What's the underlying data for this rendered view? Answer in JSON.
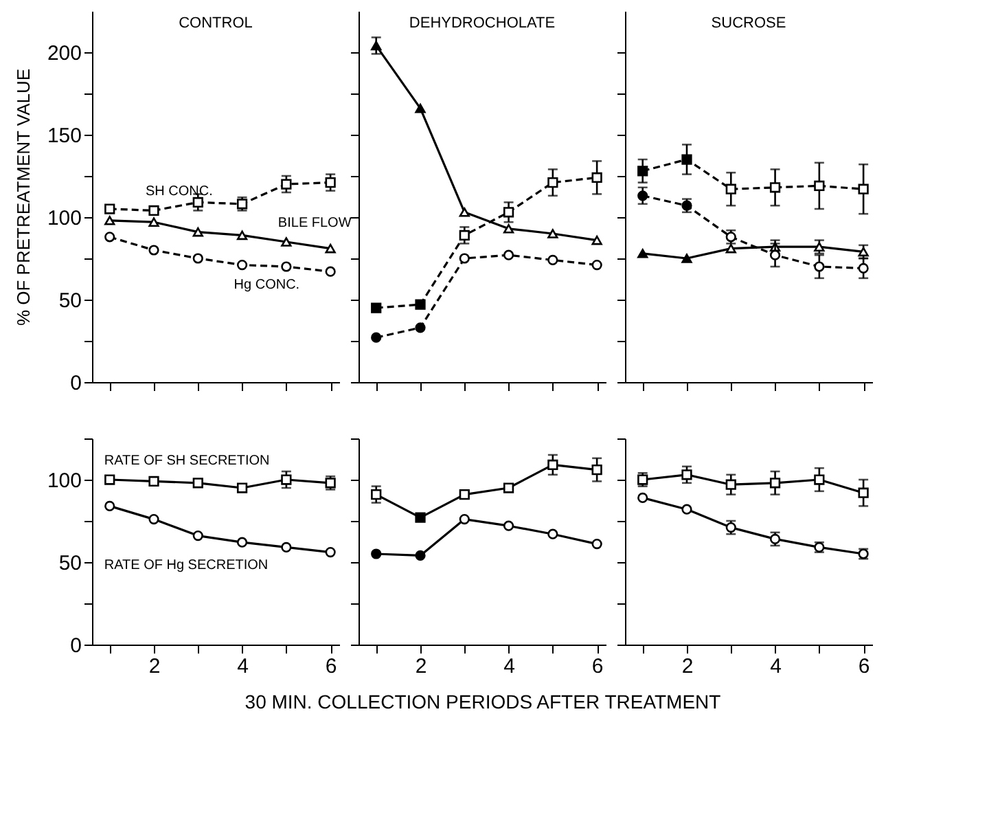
{
  "chart_data": [
    {
      "type": "line",
      "title": "CONTROL",
      "ylabel": "% OF PRETREATMENT VALUE",
      "tick_labels": "y",
      "xlim": [
        0.6,
        6.2
      ],
      "ylim": [
        0,
        225
      ],
      "xticks": [
        {
          "value": 1,
          "label": null
        },
        2,
        {
          "value": 3,
          "label": null
        },
        4,
        {
          "value": 5,
          "label": null
        },
        6
      ],
      "yticks": [
        0,
        {
          "value": 25,
          "label": null
        },
        50,
        {
          "value": 75,
          "label": null
        },
        100,
        {
          "value": 125,
          "label": null
        },
        150,
        {
          "value": 175,
          "label": null
        },
        200
      ],
      "x": [
        1,
        2,
        3,
        4,
        5,
        6
      ],
      "series": [
        {
          "name": "SH CONC.",
          "color": "#000000",
          "marker": "square",
          "line_style": "dashed",
          "values": [
            105,
            104,
            109,
            108,
            120,
            121
          ],
          "errors": [
            null,
            null,
            5,
            4,
            5,
            5
          ],
          "colors": [
            "#ffffff",
            "#ffffff",
            "#ffffff",
            "#ffffff",
            "#ffffff",
            "#ffffff"
          ]
        },
        {
          "name": "BILE FLOW",
          "color": "#000000",
          "marker": "triangle",
          "line_style": "solid",
          "values": [
            98,
            97,
            91,
            89,
            85,
            81
          ],
          "colors": [
            "#ffffff",
            "#ffffff",
            "#ffffff",
            "#ffffff",
            "#ffffff",
            "#ffffff"
          ]
        },
        {
          "name": "Hg CONC.",
          "color": "#000000",
          "marker": "circle",
          "line_style": "dashed",
          "values": [
            88,
            80,
            75,
            71,
            70,
            67
          ],
          "colors": [
            "#ffffff",
            "#ffffff",
            "#ffffff",
            "#ffffff",
            "#ffffff",
            "#ffffff"
          ]
        }
      ]
    },
    {
      "type": "line",
      "title": "DEHYDROCHOLATE",
      "tick_labels": false,
      "xlim": [
        0.6,
        6.2
      ],
      "ylim": [
        0,
        225
      ],
      "xticks": [
        {
          "value": 1,
          "label": null
        },
        2,
        {
          "value": 3,
          "label": null
        },
        4,
        {
          "value": 5,
          "label": null
        },
        6
      ],
      "yticks": [
        0,
        {
          "value": 25,
          "label": null
        },
        50,
        {
          "value": 75,
          "label": null
        },
        100,
        {
          "value": 125,
          "label": null
        },
        150,
        {
          "value": 175,
          "label": null
        },
        200
      ],
      "x": [
        1,
        2,
        3,
        4,
        5,
        6
      ],
      "series": [
        {
          "color": "#000000",
          "marker": "square",
          "line_style": "dashed",
          "values": [
            45,
            47,
            89,
            103,
            121,
            124
          ],
          "errors": [
            null,
            null,
            5,
            6,
            8,
            10
          ],
          "colors": [
            "#000000",
            "#000000",
            "#ffffff",
            "#ffffff",
            "#ffffff",
            "#ffffff"
          ]
        },
        {
          "color": "#000000",
          "marker": "triangle",
          "line_style": "solid",
          "values": [
            204,
            166,
            103,
            93,
            90,
            86
          ],
          "errors": [
            5,
            null,
            null,
            null,
            null,
            null
          ],
          "colors": [
            "#000000",
            "#000000",
            "#ffffff",
            "#ffffff",
            "#ffffff",
            "#ffffff"
          ]
        },
        {
          "color": "#000000",
          "marker": "circle",
          "line_style": "dashed",
          "values": [
            27,
            33,
            75,
            77,
            74,
            71
          ],
          "colors": [
            "#000000",
            "#000000",
            "#ffffff",
            "#ffffff",
            "#ffffff",
            "#ffffff"
          ]
        }
      ]
    },
    {
      "type": "line",
      "title": "SUCROSE",
      "tick_labels": false,
      "xlim": [
        0.6,
        6.2
      ],
      "ylim": [
        0,
        225
      ],
      "xticks": [
        {
          "value": 1,
          "label": null
        },
        2,
        {
          "value": 3,
          "label": null
        },
        4,
        {
          "value": 5,
          "label": null
        },
        6
      ],
      "yticks": [
        0,
        {
          "value": 25,
          "label": null
        },
        50,
        {
          "value": 75,
          "label": null
        },
        100,
        {
          "value": 125,
          "label": null
        },
        150,
        {
          "value": 175,
          "label": null
        },
        200
      ],
      "x": [
        1,
        2,
        3,
        4,
        5,
        6
      ],
      "series": [
        {
          "color": "#000000",
          "marker": "square",
          "line_style": "dashed",
          "values": [
            128,
            135,
            117,
            118,
            119,
            117
          ],
          "errors": [
            7,
            9,
            10,
            11,
            14,
            15
          ],
          "colors": [
            "#000000",
            "#000000",
            "#ffffff",
            "#ffffff",
            "#ffffff",
            "#ffffff"
          ]
        },
        {
          "color": "#000000",
          "marker": "triangle",
          "line_style": "solid",
          "values": [
            78,
            75,
            81,
            82,
            82,
            79
          ],
          "errors": [
            null,
            null,
            null,
            4,
            4,
            4
          ],
          "colors": [
            "#000000",
            "#000000",
            "#ffffff",
            "#ffffff",
            "#ffffff",
            "#ffffff"
          ]
        },
        {
          "color": "#000000",
          "marker": "circle",
          "line_style": "dashed",
          "values": [
            113,
            107,
            88,
            77,
            70,
            69
          ],
          "errors": [
            5,
            4,
            4,
            7,
            7,
            6
          ],
          "colors": [
            "#000000",
            "#000000",
            "#ffffff",
            "#ffffff",
            "#ffffff",
            "#ffffff"
          ]
        }
      ]
    },
    {
      "type": "line",
      "xlim": [
        0.6,
        6.2
      ],
      "ylim": [
        0,
        125
      ],
      "xticks": [
        {
          "value": 1,
          "label": null
        },
        2,
        {
          "value": 3,
          "label": null
        },
        4,
        {
          "value": 5,
          "label": null
        },
        6
      ],
      "yticks": [
        0,
        {
          "value": 25,
          "label": null
        },
        50,
        {
          "value": 75,
          "label": null
        },
        100,
        {
          "value": 125,
          "label": null
        }
      ],
      "x": [
        1,
        2,
        3,
        4,
        5,
        6
      ],
      "series": [
        {
          "name": "RATE OF SH SECRETION",
          "color": "#000000",
          "marker": "square",
          "line_style": "solid",
          "values": [
            100,
            99,
            98,
            95,
            100,
            98
          ],
          "errors": [
            null,
            null,
            null,
            null,
            5,
            4
          ],
          "colors": [
            "#ffffff",
            "#ffffff",
            "#ffffff",
            "#ffffff",
            "#ffffff",
            "#ffffff"
          ]
        },
        {
          "name": "RATE OF Hg SECRETION",
          "color": "#000000",
          "marker": "circle",
          "line_style": "solid",
          "values": [
            84,
            76,
            66,
            62,
            59,
            56
          ],
          "colors": [
            "#ffffff",
            "#ffffff",
            "#ffffff",
            "#ffffff",
            "#ffffff",
            "#ffffff"
          ]
        }
      ]
    },
    {
      "type": "line",
      "xlabel": "30 MIN. COLLECTION PERIODS AFTER TREATMENT",
      "tick_labels": "x",
      "xlim": [
        0.6,
        6.2
      ],
      "ylim": [
        0,
        125
      ],
      "xticks": [
        {
          "value": 1,
          "label": null
        },
        2,
        {
          "value": 3,
          "label": null
        },
        4,
        {
          "value": 5,
          "label": null
        },
        6
      ],
      "yticks": [
        0,
        {
          "value": 25,
          "label": null
        },
        50,
        {
          "value": 75,
          "label": null
        },
        100,
        {
          "value": 125,
          "label": null
        }
      ],
      "x": [
        1,
        2,
        3,
        4,
        5,
        6
      ],
      "series": [
        {
          "color": "#000000",
          "marker": "square",
          "line_style": "solid",
          "values": [
            91,
            77,
            91,
            95,
            109,
            106
          ],
          "errors": [
            5,
            null,
            null,
            null,
            6,
            7
          ],
          "colors": [
            "#ffffff",
            "#000000",
            "#ffffff",
            "#ffffff",
            "#ffffff",
            "#ffffff"
          ]
        },
        {
          "color": "#000000",
          "marker": "circle",
          "line_style": "solid",
          "values": [
            55,
            54,
            76,
            72,
            67,
            61
          ],
          "colors": [
            "#000000",
            "#000000",
            "#ffffff",
            "#ffffff",
            "#ffffff",
            "#ffffff"
          ]
        }
      ]
    },
    {
      "type": "line",
      "tick_labels": "x",
      "xlim": [
        0.6,
        6.2
      ],
      "ylim": [
        0,
        125
      ],
      "xticks": [
        {
          "value": 1,
          "label": null
        },
        2,
        {
          "value": 3,
          "label": null
        },
        4,
        {
          "value": 5,
          "label": null
        },
        6
      ],
      "yticks": [
        0,
        {
          "value": 25,
          "label": null
        },
        50,
        {
          "value": 75,
          "label": null
        },
        100,
        {
          "value": 125,
          "label": null
        }
      ],
      "x": [
        1,
        2,
        3,
        4,
        5,
        6
      ],
      "series": [
        {
          "color": "#000000",
          "marker": "square",
          "line_style": "solid",
          "values": [
            100,
            103,
            97,
            98,
            100,
            92
          ],
          "errors": [
            4,
            5,
            6,
            7,
            7,
            8
          ],
          "colors": [
            "#ffffff",
            "#ffffff",
            "#ffffff",
            "#ffffff",
            "#ffffff",
            "#ffffff"
          ]
        },
        {
          "color": "#000000",
          "marker": "circle",
          "line_style": "solid",
          "values": [
            89,
            82,
            71,
            64,
            59,
            55
          ],
          "errors": [
            null,
            null,
            4,
            4,
            3,
            3
          ],
          "colors": [
            "#ffffff",
            "#ffffff",
            "#ffffff",
            "#ffffff",
            "#ffffff",
            "#ffffff"
          ]
        }
      ]
    }
  ]
}
